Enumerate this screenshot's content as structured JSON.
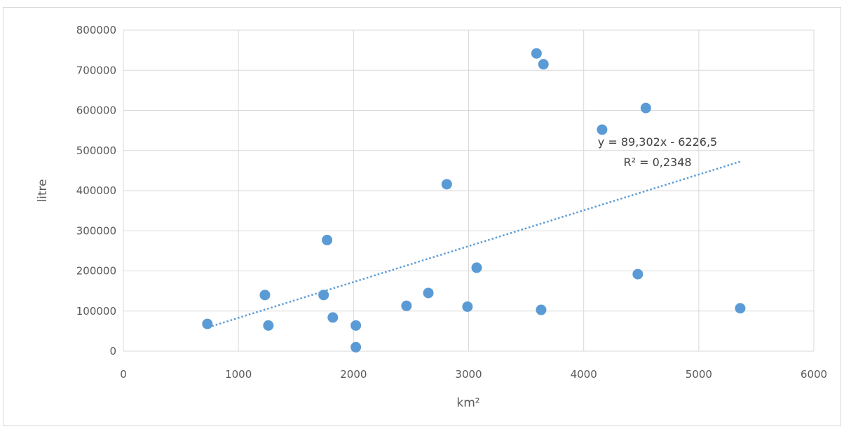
{
  "chart_data": {
    "type": "scatter",
    "title": "",
    "xlabel": "km²",
    "ylabel": "litre",
    "xlim": [
      0,
      6000
    ],
    "ylim": [
      0,
      800000
    ],
    "x_ticks": [
      0,
      1000,
      2000,
      3000,
      4000,
      5000,
      6000
    ],
    "y_ticks": [
      0,
      100000,
      200000,
      300000,
      400000,
      500000,
      600000,
      700000,
      800000
    ],
    "grid": true,
    "legend": "none",
    "point_color": "#5b9bd5",
    "series": [
      {
        "x": [
          730,
          1230,
          1260,
          1740,
          1770,
          1820,
          2020,
          2020,
          2460,
          2650,
          2810,
          2990,
          3070,
          3590,
          3630,
          3650,
          4160,
          4470,
          4540,
          5360
        ],
        "y": [
          68000,
          140000,
          64000,
          140000,
          277000,
          84000,
          64000,
          10000,
          113000,
          145000,
          416000,
          111000,
          208000,
          742000,
          103000,
          715000,
          552000,
          192000,
          606000,
          107000
        ]
      }
    ],
    "trendline": {
      "slope": 89.302,
      "intercept": -6226.5,
      "x_range": [
        770,
        5360
      ],
      "color": "#5b9bd5",
      "equation": "y = 89,302x - 6226,5",
      "r_squared": "R² = 0,2348"
    }
  }
}
